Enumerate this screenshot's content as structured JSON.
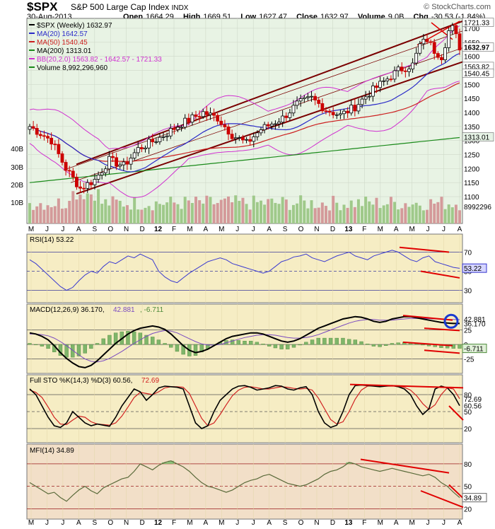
{
  "header": {
    "ticker": "$SPX",
    "name": "S&P 500 Large Cap Index",
    "exchange": "INDX",
    "date": "30-Aug-2013",
    "open_label": "Open",
    "open": "1664.29",
    "high_label": "High",
    "high": "1669.51",
    "low_label": "Low",
    "low": "1627.47",
    "close_label": "Close",
    "close": "1632.97",
    "volume_label": "Volume",
    "volume": "9.0B",
    "chg_label": "Chg",
    "chg": "-30.53 (-1.84%)",
    "logo": "© StockCharts.com"
  },
  "colors": {
    "price_bg": "#e8f3e4",
    "panel_bg": "#f6edc4",
    "mfi_bg": "#f2dfc8",
    "ma20": "#2a2ac8",
    "ma50": "#cc2020",
    "ma200": "#1a8a1a",
    "bb": "#d030d0",
    "up": "#000000",
    "down": "#cc0000",
    "trend": "#7a0000",
    "annot": "#e00000",
    "vol_up": "#9fc98a",
    "vol_down": "#d49a9a"
  },
  "legend": {
    "spx": "$SPX (Weekly) 1632.97",
    "ma20": "MA(20) 1642.57",
    "ma50": "MA(50) 1540.45",
    "ma200": "MA(200) 1313.01",
    "bb": "BB(20,2.0) 1563.82 - 1642.57 - 1721.33",
    "volume": "Volume 8,992,296,960"
  },
  "price_axis": {
    "ticks": [
      "1700",
      "1650",
      "1600",
      "1550",
      "1500",
      "1450",
      "1400",
      "1350",
      "1300",
      "1250",
      "1200",
      "1150",
      "1100"
    ],
    "last_labels": {
      "bb_upper": "1721.33",
      "close": "1632.97",
      "bb_lower": "1563.82",
      "ma50": "1540.45",
      "ma200": "1313.01",
      "volume": "8992296"
    }
  },
  "volume_axis": {
    "ticks": [
      "40B",
      "30B",
      "20B",
      "10B"
    ]
  },
  "months": [
    "M",
    "J",
    "J",
    "A",
    "S",
    "O",
    "N",
    "D",
    "12",
    "F",
    "M",
    "A",
    "M",
    "J",
    "J",
    "A",
    "S",
    "O",
    "N",
    "D",
    "13",
    "F",
    "M",
    "A",
    "M",
    "J",
    "J",
    "A"
  ],
  "bold_months": [
    "12",
    "13"
  ],
  "rsi": {
    "label": "RSI(14) 53.22",
    "ticks": [
      "70",
      "50",
      "30"
    ],
    "last": "53.22",
    "values": [
      62,
      58,
      52,
      46,
      40,
      34,
      30,
      33,
      40,
      46,
      50,
      48,
      55,
      60,
      58,
      62,
      66,
      64,
      68,
      65,
      62,
      50,
      44,
      40,
      38,
      43,
      48,
      52,
      56,
      60,
      62,
      64,
      62,
      58,
      56,
      54,
      52,
      50,
      48,
      50,
      55,
      60,
      62,
      65,
      66,
      68,
      64,
      62,
      60,
      63,
      66,
      68,
      70,
      66,
      64,
      62,
      66,
      68,
      70,
      72,
      70,
      66,
      62,
      60,
      64,
      66,
      60,
      58,
      56,
      54,
      53
    ]
  },
  "macd": {
    "label": "MACD(12,26,9) 36.170, 42.881, -6.711",
    "ticks": [
      "25",
      "0",
      "-25"
    ],
    "last_macd": "36.170",
    "last_signal": "42.881",
    "last_hist": "-6.711",
    "macd": [
      20,
      18,
      14,
      8,
      -2,
      -14,
      -24,
      -32,
      -38,
      -40,
      -36,
      -28,
      -18,
      -8,
      2,
      10,
      18,
      24,
      28,
      30,
      32,
      30,
      26,
      18,
      8,
      -2,
      -10,
      -14,
      -12,
      -8,
      -2,
      4,
      10,
      14,
      16,
      18,
      20,
      20,
      18,
      14,
      10,
      6,
      4,
      6,
      10,
      16,
      22,
      28,
      32,
      36,
      40,
      44,
      46,
      48,
      47,
      44,
      40,
      38,
      40,
      44,
      46,
      48,
      48,
      46,
      44,
      42,
      40,
      38,
      37,
      36.2,
      36.17
    ],
    "signal": [
      18,
      18,
      17,
      15,
      11,
      5,
      -2,
      -10,
      -18,
      -25,
      -29,
      -30,
      -28,
      -24,
      -18,
      -12,
      -5,
      2,
      8,
      14,
      19,
      22,
      24,
      23,
      20,
      15,
      10,
      5,
      1,
      -1,
      -1,
      0,
      3,
      6,
      9,
      12,
      14,
      16,
      17,
      17,
      16,
      14,
      12,
      11,
      11,
      12,
      14,
      17,
      21,
      25,
      29,
      33,
      37,
      40,
      42,
      43,
      43,
      42,
      42,
      42,
      43,
      44,
      45,
      45,
      45,
      44.5,
      44,
      43.6,
      43.2,
      43,
      42.881
    ]
  },
  "sto": {
    "label": "Full STO %K(14,3) %D(3) 60.56, 72.69",
    "ticks": [
      "80",
      "50",
      "20"
    ],
    "last_k": "60.56",
    "last_d": "72.69",
    "k": [
      90,
      80,
      60,
      40,
      25,
      22,
      30,
      50,
      40,
      30,
      25,
      28,
      26,
      24,
      40,
      60,
      75,
      90,
      85,
      70,
      80,
      92,
      95,
      94,
      93,
      90,
      60,
      30,
      20,
      25,
      50,
      70,
      80,
      90,
      95,
      96,
      93,
      88,
      90,
      92,
      96,
      95,
      90,
      88,
      92,
      94,
      80,
      50,
      30,
      22,
      26,
      50,
      80,
      96,
      97,
      96,
      95,
      94,
      95,
      96,
      94,
      90,
      80,
      60,
      45,
      55,
      90,
      95,
      92,
      80,
      60.56
    ],
    "d": [
      88,
      84,
      75,
      58,
      40,
      28,
      27,
      35,
      42,
      40,
      32,
      28,
      27,
      26,
      30,
      42,
      58,
      75,
      84,
      82,
      80,
      85,
      92,
      94,
      94,
      93,
      82,
      60,
      38,
      25,
      30,
      45,
      62,
      78,
      88,
      93,
      94,
      92,
      90,
      90,
      92,
      94,
      93,
      91,
      90,
      91,
      88,
      74,
      55,
      36,
      28,
      32,
      50,
      72,
      88,
      95,
      96,
      95,
      95,
      95,
      95,
      93,
      88,
      78,
      64,
      54,
      62,
      80,
      92,
      90,
      72.69
    ]
  },
  "mfi": {
    "label": "MFI(14) 34.89",
    "ticks": [
      "80",
      "50",
      "20"
    ],
    "last": "34.89",
    "values": [
      55,
      50,
      45,
      40,
      42,
      35,
      30,
      38,
      45,
      50,
      44,
      40,
      48,
      52,
      56,
      60,
      62,
      70,
      80,
      76,
      72,
      78,
      82,
      84,
      80,
      76,
      70,
      62,
      55,
      50,
      48,
      45,
      42,
      45,
      50,
      55,
      58,
      60,
      64,
      66,
      62,
      58,
      54,
      52,
      50,
      52,
      56,
      60,
      66,
      70,
      72,
      76,
      82,
      80,
      76,
      74,
      72,
      70,
      72,
      74,
      72,
      70,
      68,
      66,
      64,
      66,
      62,
      55,
      50,
      42,
      34.89
    ]
  }
}
